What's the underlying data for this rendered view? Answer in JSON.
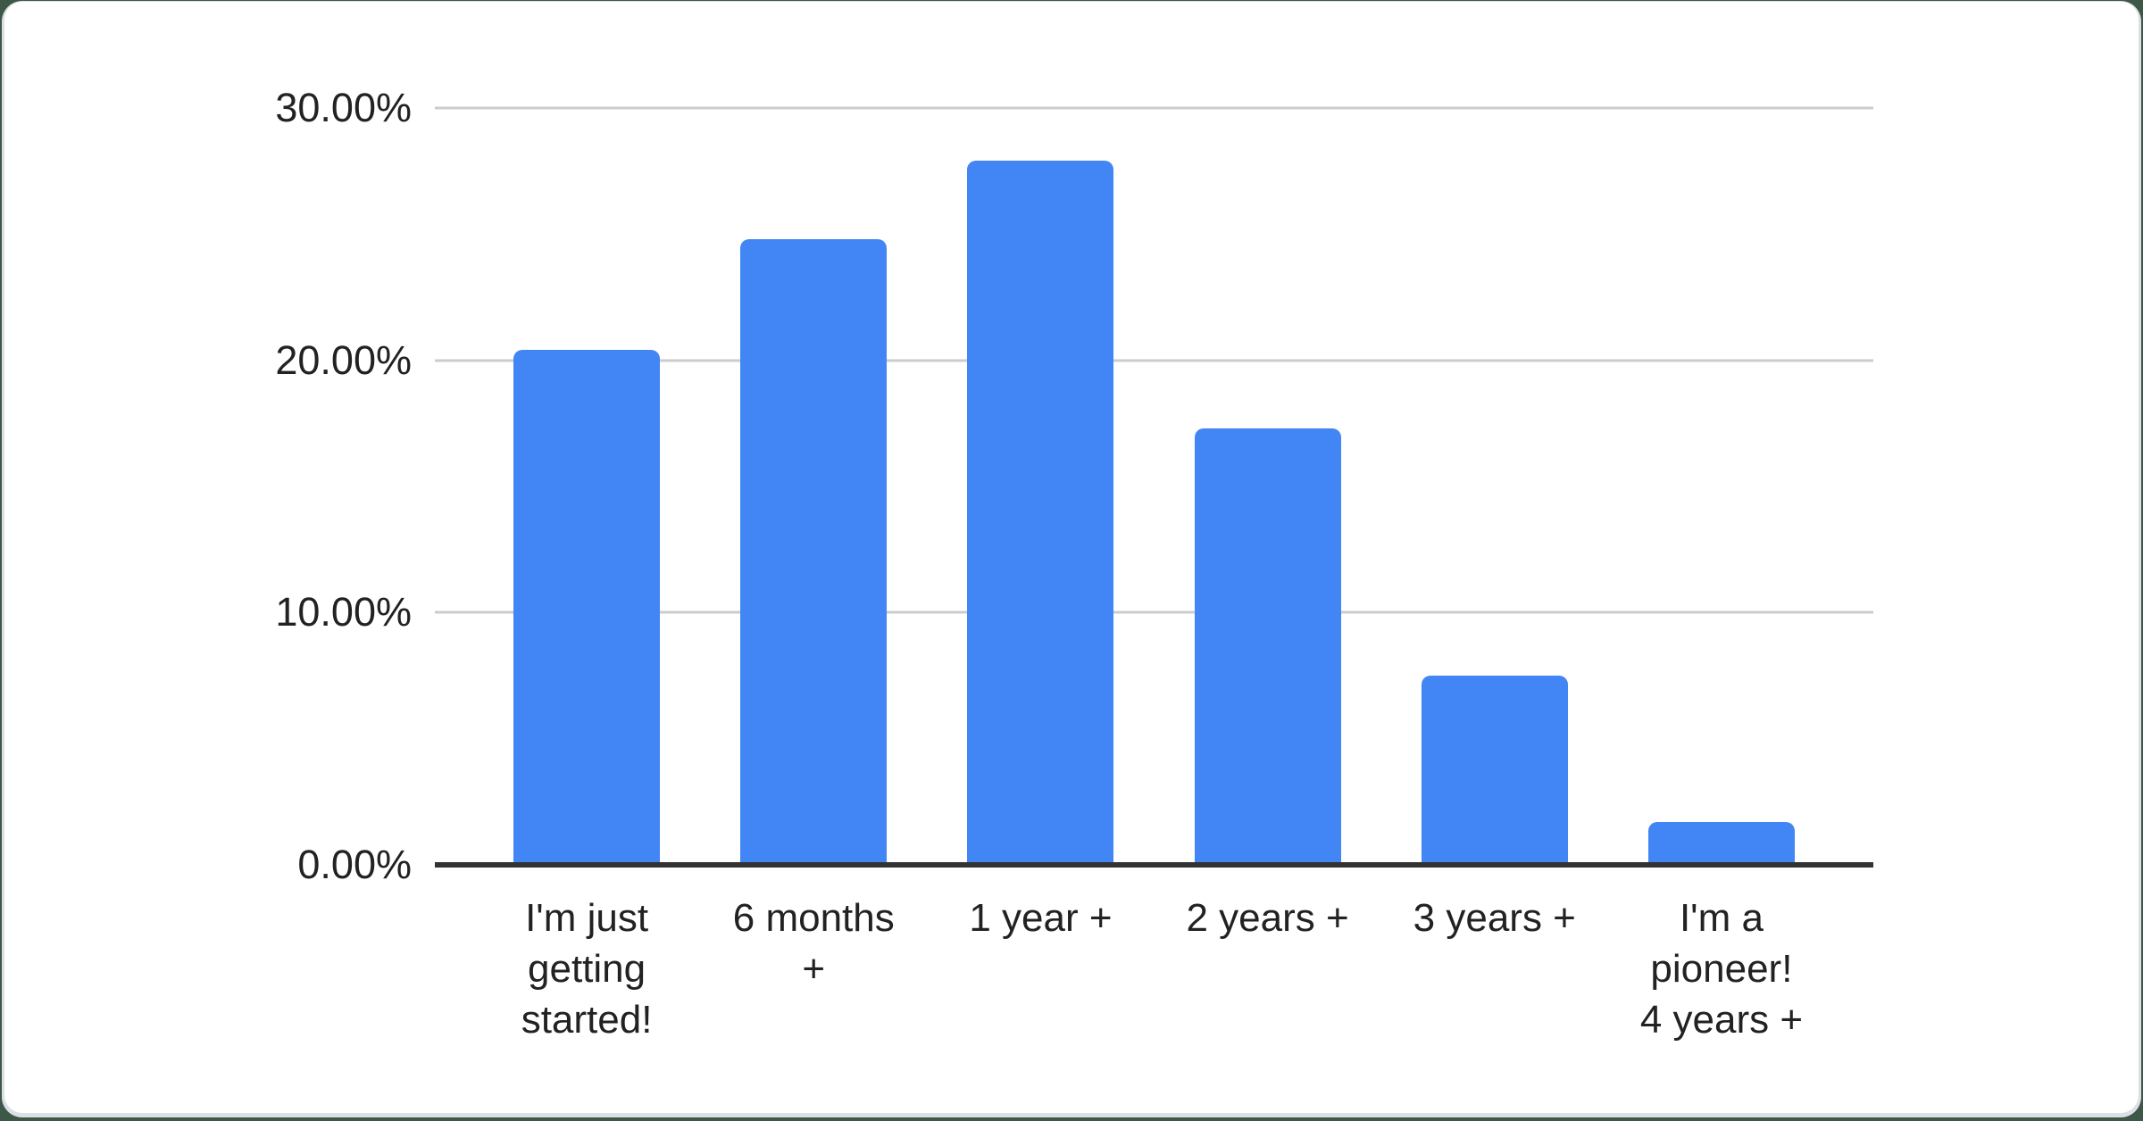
{
  "colors": {
    "bar": "#4285f4",
    "gridline": "#cccccc",
    "axis": "#333333",
    "text": "#222222",
    "card_bg": "#ffffff",
    "page_bg": "#3d5847",
    "card_shadow": "#dce0e6"
  },
  "chart_data": {
    "type": "bar",
    "title": "",
    "xlabel": "",
    "ylabel": "",
    "categories": [
      "I'm just getting started!",
      "6 months +",
      "1 year +",
      "2 years +",
      "3 years +",
      "I'm a pioneer! 4 years +"
    ],
    "category_display": [
      "I'm just\ngetting\nstarted!",
      "6 months\n+",
      "1 year +",
      "2 years +",
      "3 years +",
      "I'm a\npioneer!\n4 years +"
    ],
    "values": [
      20.4,
      24.8,
      27.9,
      17.3,
      7.5,
      1.7
    ],
    "ylim": [
      0,
      30
    ],
    "y_ticks": [
      {
        "value": 30,
        "label": "30.00%"
      },
      {
        "value": 20,
        "label": "20.00%"
      },
      {
        "value": 10,
        "label": "10.00%"
      },
      {
        "value": 0,
        "label": "0.00%"
      }
    ],
    "grid": true,
    "legend": "none",
    "bar_color": "#4285f4"
  }
}
